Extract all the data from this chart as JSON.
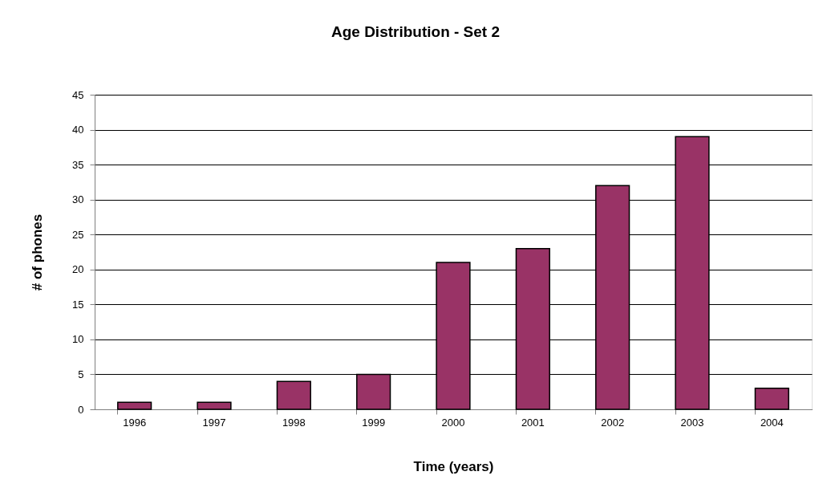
{
  "chart_data": {
    "type": "bar",
    "title": "Age Distribution - Set 2",
    "xlabel": "Time (years)",
    "ylabel": "# of phones",
    "categories": [
      "1996",
      "1997",
      "1998",
      "1999",
      "2000",
      "2001",
      "2002",
      "2003",
      "2004"
    ],
    "values": [
      1,
      1,
      4,
      5,
      21,
      23,
      32,
      39,
      3
    ],
    "color": "#993366",
    "ylim": [
      0,
      45
    ],
    "yticks": [
      0,
      5,
      10,
      15,
      20,
      25,
      30,
      35,
      40,
      45
    ],
    "grid": "y"
  }
}
